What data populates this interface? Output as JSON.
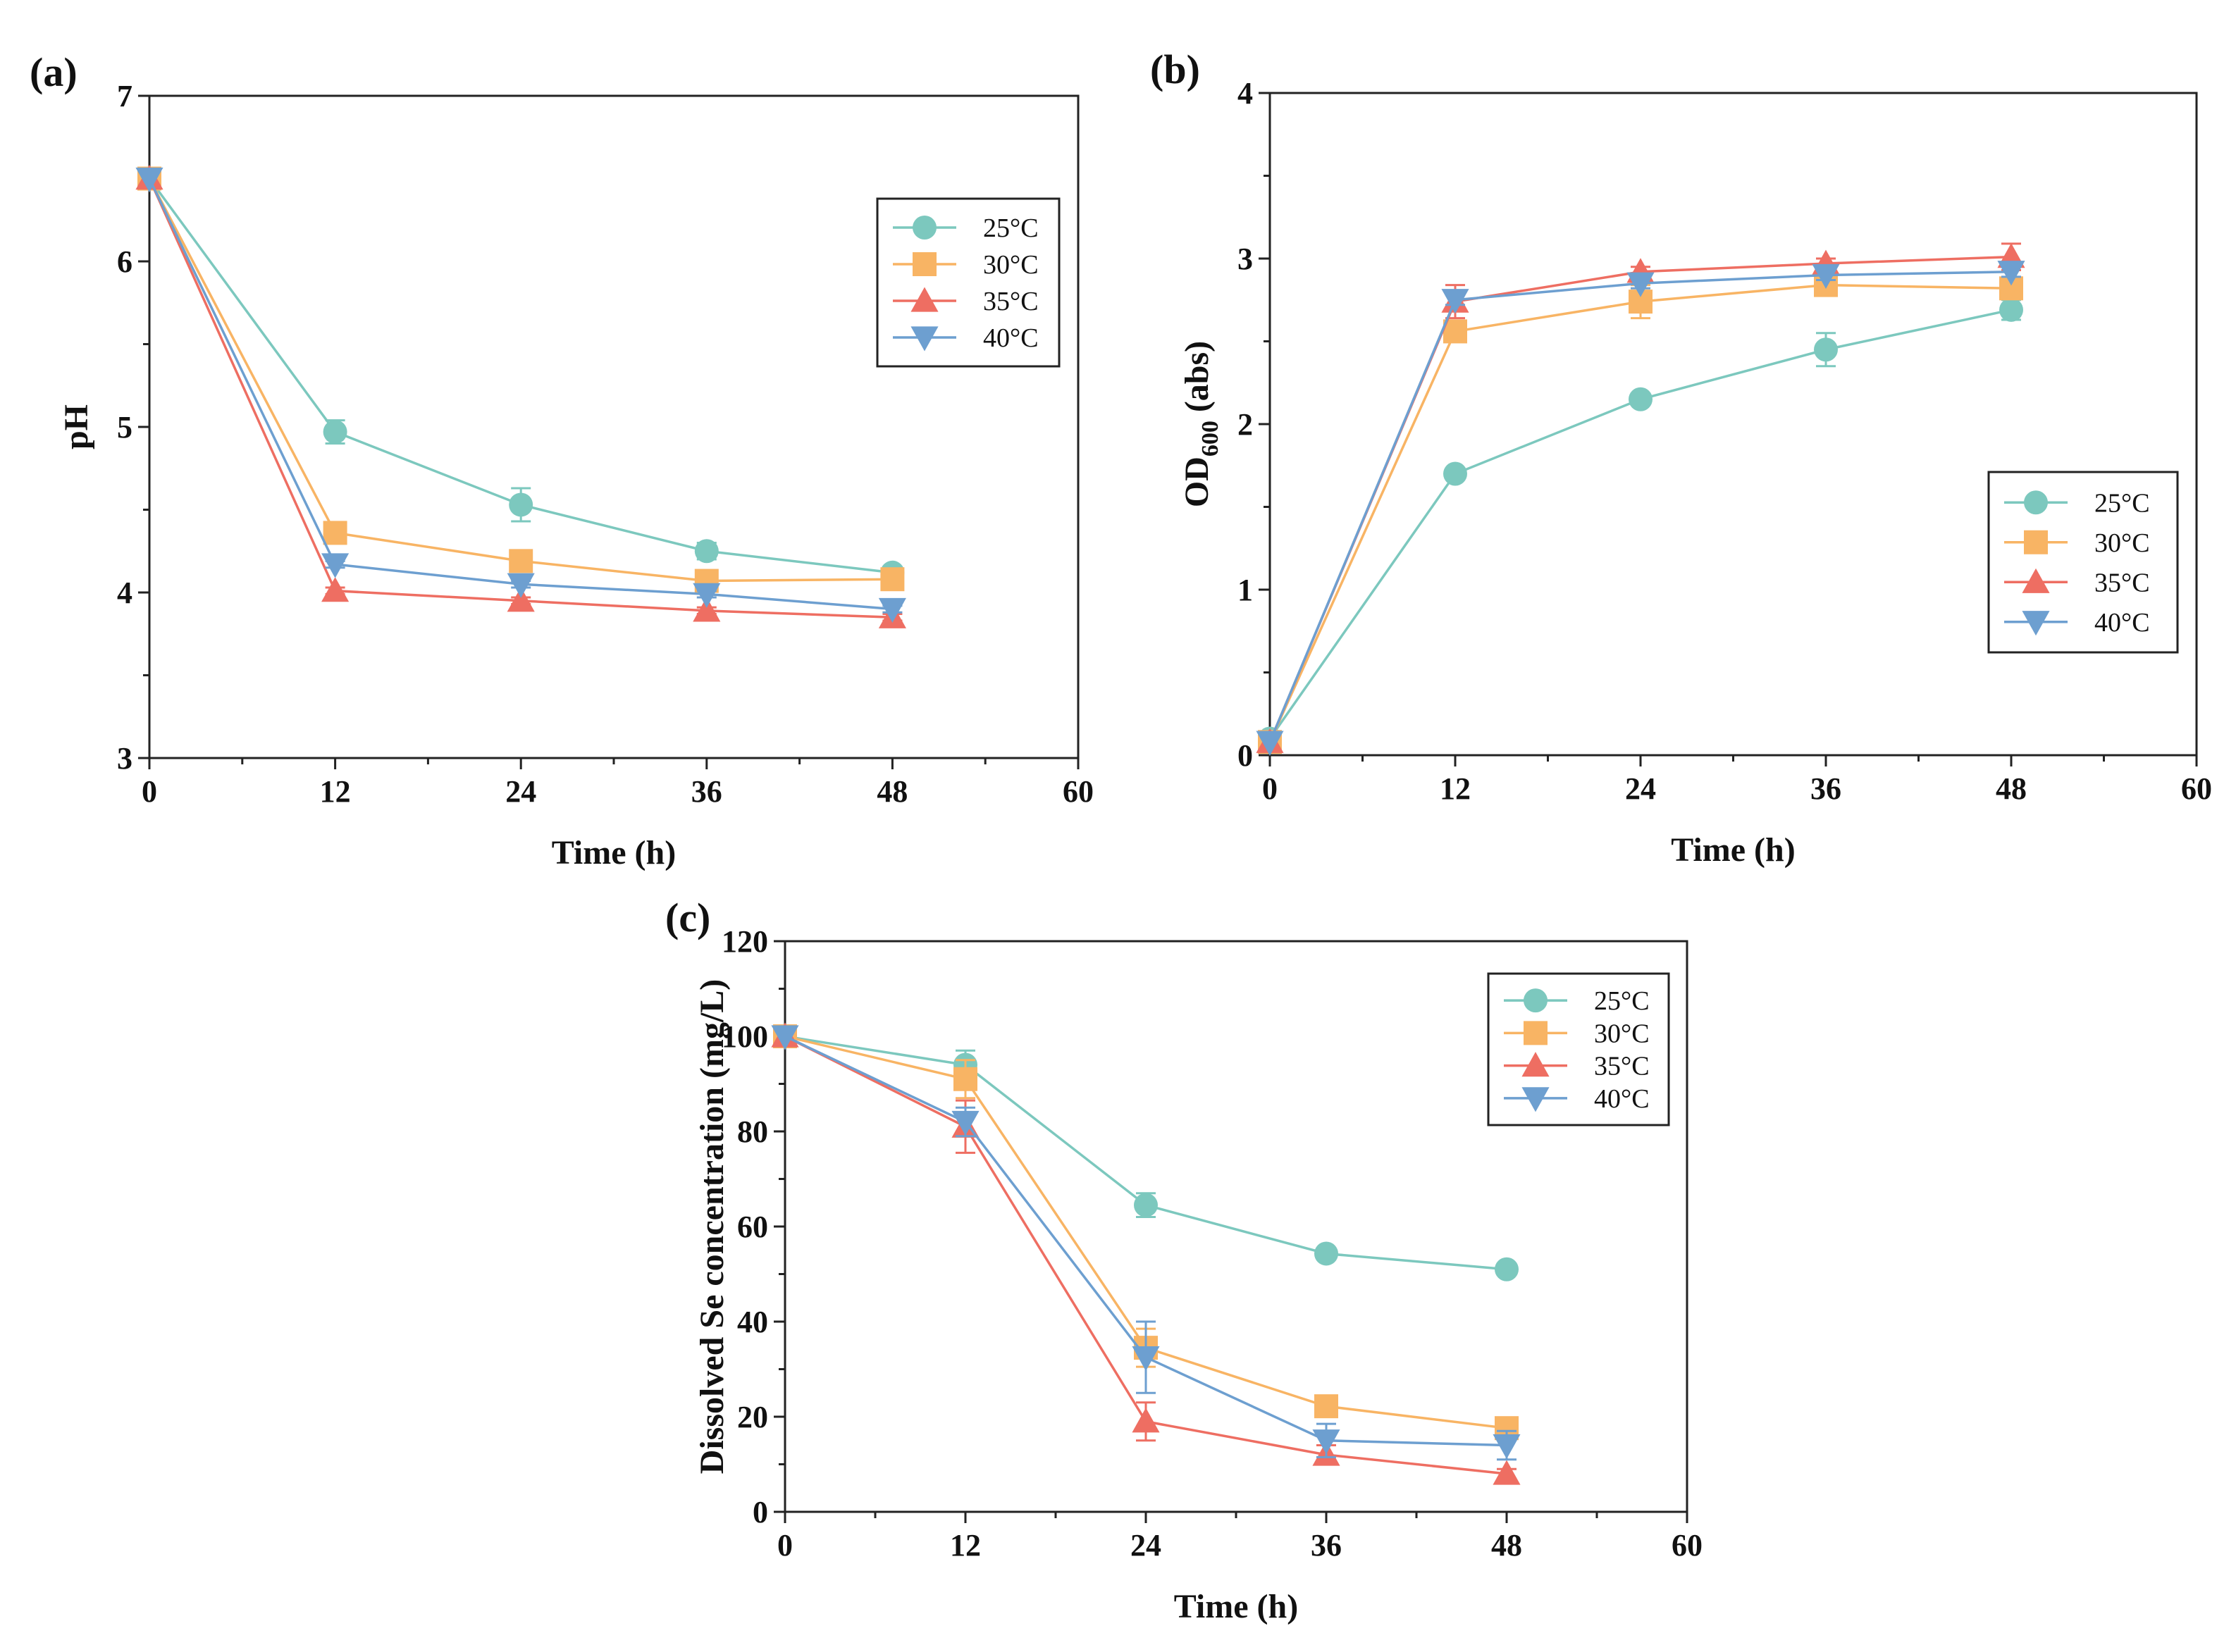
{
  "colors": {
    "25": "#7cc8be",
    "30": "#f8b464",
    "35": "#ee6e62",
    "40": "#6d9fd0"
  },
  "chart_data": [
    {
      "type": "line",
      "panel_label": "(a)",
      "xlabel": "Time (h)",
      "ylabel": "pH",
      "xlim": [
        0,
        60
      ],
      "ylim": [
        3,
        7
      ],
      "xticks": [
        0,
        12,
        24,
        36,
        48,
        60
      ],
      "yticks": [
        3,
        4,
        5,
        6,
        7
      ],
      "x": [
        0,
        12,
        24,
        36,
        48
      ],
      "legend_position": "top-right",
      "series": [
        {
          "name": "25°C",
          "marker": "circle",
          "color": "#7cc8be",
          "values": [
            6.5,
            4.97,
            4.53,
            4.25,
            4.12
          ],
          "errors": [
            0,
            0.07,
            0.1,
            0.05,
            0.03
          ]
        },
        {
          "name": "30°C",
          "marker": "square",
          "color": "#f8b464",
          "values": [
            6.5,
            4.36,
            4.19,
            4.07,
            4.08
          ],
          "errors": [
            0,
            0.03,
            0.04,
            0.03,
            0.02
          ]
        },
        {
          "name": "35°C",
          "marker": "triangle-up",
          "color": "#ee6e62",
          "values": [
            6.5,
            4.01,
            3.95,
            3.89,
            3.85
          ],
          "errors": [
            0,
            0.02,
            0.02,
            0.02,
            0.02
          ]
        },
        {
          "name": "40°C",
          "marker": "triangle-down",
          "color": "#6d9fd0",
          "values": [
            6.5,
            4.17,
            4.05,
            3.99,
            3.9
          ],
          "errors": [
            0,
            0.02,
            0.02,
            0.02,
            0.02
          ]
        }
      ]
    },
    {
      "type": "line",
      "panel_label": "(b)",
      "xlabel": "Time (h)",
      "ylabel": "OD",
      "ylabel_sub": "600",
      "ylabel_suffix": " (abs)",
      "xlim": [
        0,
        60
      ],
      "ylim": [
        0,
        4
      ],
      "xticks": [
        0,
        12,
        24,
        36,
        48,
        60
      ],
      "yticks": [
        0,
        1,
        2,
        3,
        4
      ],
      "x": [
        0,
        12,
        24,
        36,
        48
      ],
      "legend_position": "center-right",
      "series": [
        {
          "name": "25°C",
          "marker": "circle",
          "color": "#7cc8be",
          "values": [
            0.1,
            1.7,
            2.15,
            2.45,
            2.69
          ],
          "errors": [
            0,
            0.02,
            0.03,
            0.1,
            0.06
          ]
        },
        {
          "name": "30°C",
          "marker": "square",
          "color": "#f8b464",
          "values": [
            0.08,
            2.56,
            2.74,
            2.84,
            2.82
          ],
          "errors": [
            0,
            0.05,
            0.1,
            0.05,
            0.04
          ]
        },
        {
          "name": "35°C",
          "marker": "triangle-up",
          "color": "#ee6e62",
          "values": [
            0.08,
            2.74,
            2.92,
            2.97,
            3.01
          ],
          "errors": [
            0,
            0.1,
            0.03,
            0.03,
            0.08
          ]
        },
        {
          "name": "40°C",
          "marker": "triangle-down",
          "color": "#6d9fd0",
          "values": [
            0.08,
            2.75,
            2.85,
            2.9,
            2.92
          ],
          "errors": [
            0,
            0.03,
            0.03,
            0.03,
            0.03
          ]
        }
      ]
    },
    {
      "type": "line",
      "panel_label": "(c)",
      "xlabel": "Time (h)",
      "ylabel": "Dissolved Se concentration (mg/L)",
      "xlim": [
        0,
        60
      ],
      "ylim": [
        0,
        120
      ],
      "xticks": [
        0,
        12,
        24,
        36,
        48,
        60
      ],
      "yticks": [
        0,
        20,
        40,
        60,
        80,
        100,
        120
      ],
      "x": [
        0,
        12,
        24,
        36,
        48
      ],
      "legend_position": "top-right",
      "series": [
        {
          "name": "25°C",
          "marker": "circle",
          "color": "#7cc8be",
          "values": [
            100,
            94,
            64.5,
            54.3,
            51
          ],
          "errors": [
            0,
            3,
            2.5,
            0.8,
            0.6
          ]
        },
        {
          "name": "30°C",
          "marker": "square",
          "color": "#f8b464",
          "values": [
            100,
            91,
            34.5,
            22.2,
            17.6
          ],
          "errors": [
            0,
            4,
            4,
            1.2,
            1
          ]
        },
        {
          "name": "35°C",
          "marker": "triangle-up",
          "color": "#ee6e62",
          "values": [
            100,
            81,
            19,
            12,
            8
          ],
          "errors": [
            0,
            5.5,
            4,
            2,
            1
          ]
        },
        {
          "name": "40°C",
          "marker": "triangle-down",
          "color": "#6d9fd0",
          "values": [
            100,
            82,
            32.5,
            15,
            14
          ],
          "errors": [
            0,
            3,
            7.5,
            3.5,
            3
          ]
        }
      ]
    }
  ]
}
